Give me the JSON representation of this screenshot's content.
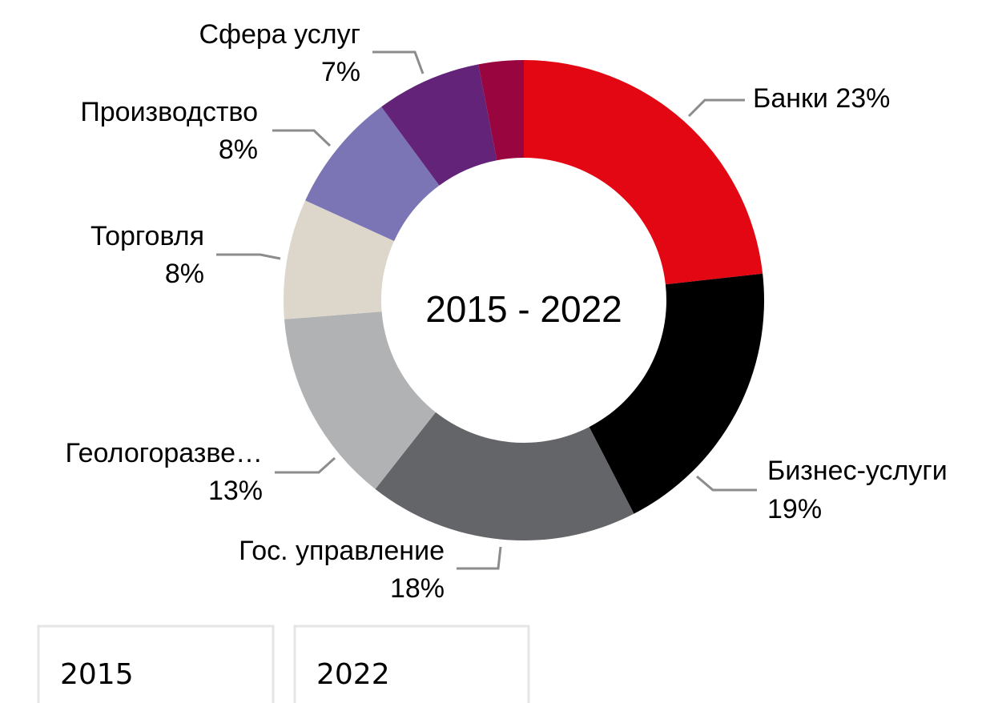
{
  "chart_data": {
    "type": "donut",
    "center_label": "2015 - 2022",
    "categories": [
      "Банки",
      "Бизнес-услуги",
      "Гос. управление",
      "Геологоразве…",
      "Торговля",
      "Производство",
      "Сфера услуг",
      null
    ],
    "values": [
      23,
      19,
      18,
      13,
      8,
      8,
      7,
      3
    ],
    "value_labels": [
      "23%",
      "19%",
      "18%",
      "13%",
      "8%",
      "8%",
      "7%",
      null
    ],
    "colors": [
      "#e30613",
      "#000000",
      "#646569",
      "#b1b2b4",
      "#dcd7ca",
      "#7b75b5",
      "#622378",
      "#99053f"
    ]
  },
  "tabs": [
    "2015",
    "2022"
  ]
}
